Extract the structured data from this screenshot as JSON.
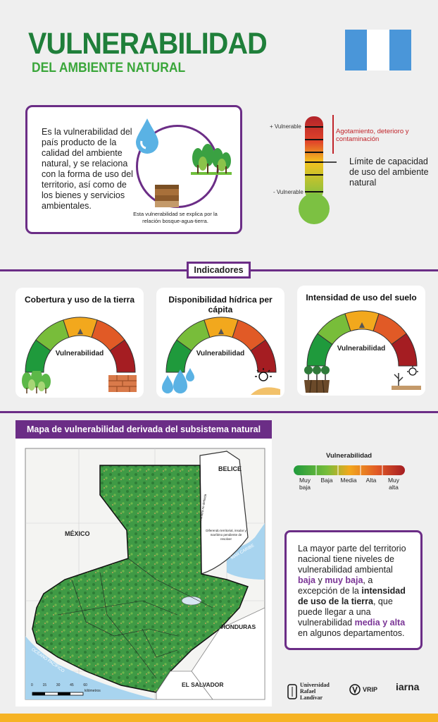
{
  "header": {
    "title": "VULNERABILIDAD",
    "subtitle": "DEL AMBIENTE NATURAL",
    "flag_colors": [
      "#4a96d9",
      "#ffffff",
      "#4a96d9"
    ]
  },
  "intro": {
    "text": "Es la vulnerabilidad del país producto de la calidad del ambiente natural, y se relaciona con la forma de uso del territorio, así como de los bienes y servicios ambientales.",
    "caption": "Esta vulnerabilidad se explica por la relación bosque-agua-tierra."
  },
  "thermometer": {
    "top_label": "+ Vulnerable",
    "bottom_label": "- Vulnerable",
    "red_note": "Agotamiento, deterioro y contaminación",
    "limit_note": "Límite de capacidad de uso del ambiente natural"
  },
  "indicators": {
    "badge": "Indicadores",
    "cards": [
      {
        "title": "Cobertura y uso de la tierra",
        "gauge_label": "Vulnerabilidad"
      },
      {
        "title": "Disponibilidad hídrica per cápita",
        "gauge_label": "Vulnerabilidad"
      },
      {
        "title": "Intensidad de uso del suelo",
        "gauge_label": "Vulnerabilidad"
      }
    ]
  },
  "map": {
    "title": "Mapa de vulnerabilidad derivada del subsistema natural",
    "labels": {
      "belice": "BELICE",
      "mexico": "MÉXICO",
      "honduras": "HONDURAS",
      "el_salvador": "EL SALVADOR",
      "mar_caribe": "MAR CARIBE",
      "oceano": "OCÉANO PACÍFICO",
      "diferendo": "Diferendo territorial, insular y marítimo pendiente de resolver",
      "frontera": "Frontera no definida",
      "scale_unit": "kilómetros",
      "scale_ticks": [
        "0",
        "15",
        "30",
        "45",
        "60"
      ]
    }
  },
  "legend": {
    "title": "Vulnerabilidad",
    "items": [
      {
        "label": "Muy baja",
        "color": "#1f9a3c"
      },
      {
        "label": "Baja",
        "color": "#78bd3a"
      },
      {
        "label": "Media",
        "color": "#f2a81d"
      },
      {
        "label": "Alta",
        "color": "#e15a26"
      },
      {
        "label": "Muy alta",
        "color": "#a51d22"
      }
    ]
  },
  "summary": {
    "p1": "La mayor parte del territorio nacional tiene niveles de vulnerabilidad ambiental ",
    "baja": "baja",
    "y": " y ",
    "muy_baja": "muy baja",
    "p2": ", a excepción de la ",
    "intensidad": "intensidad de uso de la tierra",
    "p3": ", que puede llegar a una vulnerabilidad ",
    "media_alta": "media y alta",
    "p4": " en algunos departamentos."
  },
  "logos": {
    "url": "Universidad Rafael Landívar",
    "vrip": "VRIP",
    "iarna": "iarna"
  }
}
